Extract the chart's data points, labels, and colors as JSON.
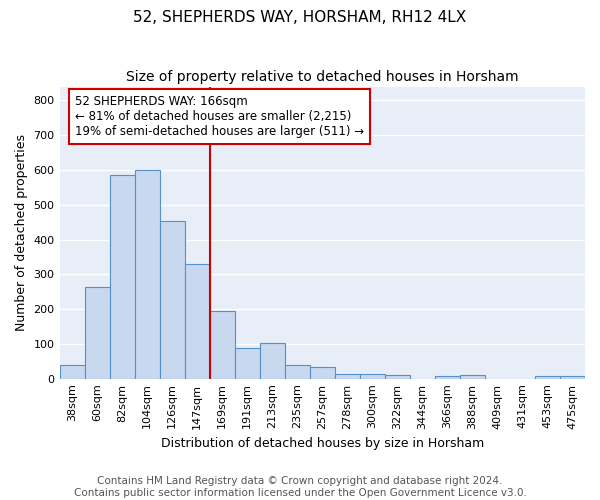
{
  "title1": "52, SHEPHERDS WAY, HORSHAM, RH12 4LX",
  "title2": "Size of property relative to detached houses in Horsham",
  "xlabel": "Distribution of detached houses by size in Horsham",
  "ylabel": "Number of detached properties",
  "categories": [
    "38sqm",
    "60sqm",
    "82sqm",
    "104sqm",
    "126sqm",
    "147sqm",
    "169sqm",
    "191sqm",
    "213sqm",
    "235sqm",
    "257sqm",
    "278sqm",
    "300sqm",
    "322sqm",
    "344sqm",
    "366sqm",
    "388sqm",
    "409sqm",
    "431sqm",
    "453sqm",
    "475sqm"
  ],
  "values": [
    38,
    265,
    585,
    600,
    452,
    330,
    196,
    88,
    103,
    38,
    33,
    14,
    13,
    10,
    0,
    7,
    10,
    0,
    0,
    7,
    7
  ],
  "bar_color": "#c8d8ee",
  "bar_edge_color": "#5590c8",
  "property_line_index": 6,
  "annotation_line1": "52 SHEPHERDS WAY: 166sqm",
  "annotation_line2": "← 81% of detached houses are smaller (2,215)",
  "annotation_line3": "19% of semi-detached houses are larger (511) →",
  "annotation_box_color": "#ffffff",
  "annotation_box_edge_color": "#cc0000",
  "line_color": "#cc0000",
  "ylim": [
    0,
    840
  ],
  "yticks": [
    0,
    100,
    200,
    300,
    400,
    500,
    600,
    700,
    800
  ],
  "footer1": "Contains HM Land Registry data © Crown copyright and database right 2024.",
  "footer2": "Contains public sector information licensed under the Open Government Licence v3.0.",
  "fig_bg_color": "#ffffff",
  "ax_bg_color": "#e8eef8",
  "grid_color": "#ffffff",
  "title1_fontsize": 11,
  "title2_fontsize": 10,
  "axis_label_fontsize": 9,
  "tick_fontsize": 8,
  "annotation_fontsize": 8.5,
  "footer_fontsize": 7.5
}
